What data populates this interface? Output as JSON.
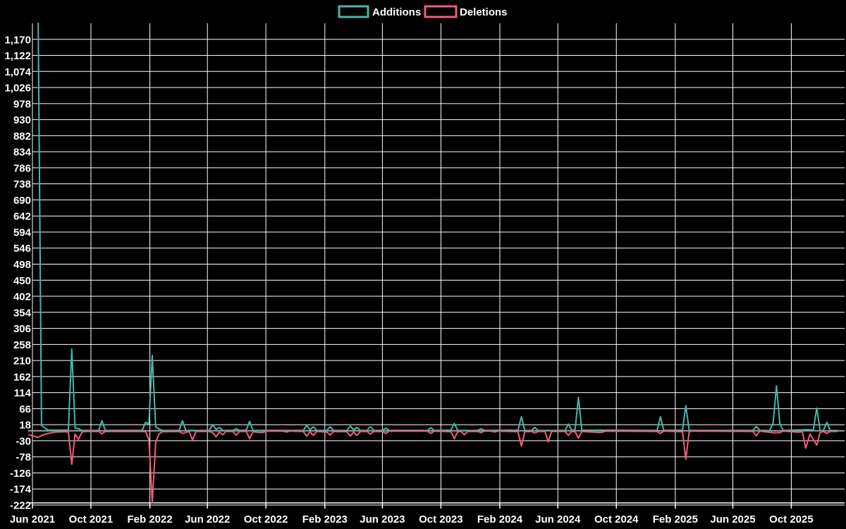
{
  "chart_data": {
    "type": "line",
    "title": "",
    "legend_position": "top-center",
    "background": "#000000",
    "grid": true,
    "grid_color": "#ffffff",
    "zero_line_color": "#9e9e9e",
    "axis_color": "#ffffff",
    "text_color": "#ffffff",
    "x_start_date": "2021-06-01",
    "ylim": [
      -222,
      1218
    ],
    "y_tick_step": 48,
    "y_ticks": [
      -222,
      -174,
      -126,
      -78,
      -30,
      18,
      66,
      114,
      162,
      210,
      258,
      306,
      354,
      402,
      450,
      498,
      546,
      594,
      642,
      690,
      738,
      786,
      834,
      882,
      930,
      978,
      1026,
      1074,
      1122,
      1170
    ],
    "x_ticks": [
      {
        "date": "2021-06-01",
        "label": "Jun 2021"
      },
      {
        "date": "2021-10-01",
        "label": "Oct 2021"
      },
      {
        "date": "2022-02-01",
        "label": "Feb 2022"
      },
      {
        "date": "2022-06-01",
        "label": "Jun 2022"
      },
      {
        "date": "2022-10-01",
        "label": "Oct 2022"
      },
      {
        "date": "2023-02-01",
        "label": "Feb 2023"
      },
      {
        "date": "2023-06-01",
        "label": "Jun 2023"
      },
      {
        "date": "2023-10-01",
        "label": "Oct 2023"
      },
      {
        "date": "2024-02-01",
        "label": "Feb 2024"
      },
      {
        "date": "2024-06-01",
        "label": "Jun 2024"
      },
      {
        "date": "2024-10-01",
        "label": "Oct 2024"
      },
      {
        "date": "2025-02-01",
        "label": "Feb 2025"
      },
      {
        "date": "2025-06-01",
        "label": "Jun 2025"
      },
      {
        "date": "2025-10-01",
        "label": "Oct 2025"
      }
    ],
    "series": [
      {
        "name": "Additions",
        "color": "#45b8ac",
        "points": [
          [
            "2021-06-13",
            1218
          ],
          [
            "2021-06-20",
            16
          ],
          [
            "2021-06-27",
            8
          ],
          [
            "2021-07-04",
            2
          ],
          [
            "2021-08-15",
            2
          ],
          [
            "2021-08-22",
            244
          ],
          [
            "2021-08-29",
            8
          ],
          [
            "2021-09-05",
            6
          ],
          [
            "2021-09-12",
            1
          ],
          [
            "2021-10-17",
            1
          ],
          [
            "2021-10-24",
            30
          ],
          [
            "2021-10-31",
            1
          ],
          [
            "2022-01-16",
            1
          ],
          [
            "2022-01-23",
            25
          ],
          [
            "2022-01-30",
            20
          ],
          [
            "2022-02-06",
            225
          ],
          [
            "2022-02-13",
            12
          ],
          [
            "2022-02-20",
            5
          ],
          [
            "2022-02-27",
            1
          ],
          [
            "2022-04-03",
            1
          ],
          [
            "2022-04-10",
            30
          ],
          [
            "2022-04-17",
            1
          ],
          [
            "2022-06-05",
            1
          ],
          [
            "2022-06-12",
            18
          ],
          [
            "2022-06-19",
            4
          ],
          [
            "2022-06-26",
            10
          ],
          [
            "2022-07-03",
            1
          ],
          [
            "2022-07-24",
            1
          ],
          [
            "2022-07-31",
            6
          ],
          [
            "2022-08-07",
            1
          ],
          [
            "2022-08-21",
            2
          ],
          [
            "2022-08-28",
            28
          ],
          [
            "2022-09-04",
            1
          ],
          [
            "2022-12-18",
            1
          ],
          [
            "2022-12-25",
            16
          ],
          [
            "2023-01-01",
            3
          ],
          [
            "2023-01-08",
            12
          ],
          [
            "2023-01-15",
            1
          ],
          [
            "2023-02-05",
            1
          ],
          [
            "2023-02-12",
            12
          ],
          [
            "2023-02-19",
            1
          ],
          [
            "2023-03-19",
            1
          ],
          [
            "2023-03-26",
            14
          ],
          [
            "2023-04-02",
            3
          ],
          [
            "2023-04-09",
            10
          ],
          [
            "2023-04-16",
            1
          ],
          [
            "2023-04-30",
            1
          ],
          [
            "2023-05-07",
            12
          ],
          [
            "2023-05-14",
            1
          ],
          [
            "2023-06-01",
            1
          ],
          [
            "2023-06-08",
            8
          ],
          [
            "2023-06-15",
            1
          ],
          [
            "2023-09-03",
            1
          ],
          [
            "2023-09-10",
            9
          ],
          [
            "2023-09-17",
            1
          ],
          [
            "2023-10-22",
            2
          ],
          [
            "2023-10-29",
            22
          ],
          [
            "2023-11-05",
            1
          ],
          [
            "2023-12-17",
            1
          ],
          [
            "2023-12-24",
            6
          ],
          [
            "2023-12-31",
            1
          ],
          [
            "2024-03-10",
            2
          ],
          [
            "2024-03-17",
            42
          ],
          [
            "2024-03-24",
            1
          ],
          [
            "2024-04-07",
            1
          ],
          [
            "2024-04-14",
            10
          ],
          [
            "2024-04-21",
            1
          ],
          [
            "2024-06-16",
            1
          ],
          [
            "2024-06-23",
            20
          ],
          [
            "2024-06-30",
            1
          ],
          [
            "2024-07-07",
            4
          ],
          [
            "2024-07-14",
            100
          ],
          [
            "2024-07-21",
            2
          ],
          [
            "2024-12-25",
            1
          ],
          [
            "2025-01-01",
            42
          ],
          [
            "2025-01-08",
            1
          ],
          [
            "2025-02-16",
            2
          ],
          [
            "2025-02-23",
            75
          ],
          [
            "2025-03-02",
            1
          ],
          [
            "2025-07-13",
            1
          ],
          [
            "2025-07-20",
            13
          ],
          [
            "2025-07-27",
            1
          ],
          [
            "2025-08-17",
            1
          ],
          [
            "2025-08-24",
            22
          ],
          [
            "2025-08-31",
            134
          ],
          [
            "2025-09-07",
            22
          ],
          [
            "2025-09-14",
            1
          ],
          [
            "2025-10-26",
            3
          ],
          [
            "2025-11-09",
            3
          ],
          [
            "2025-11-16",
            2
          ],
          [
            "2025-11-23",
            68
          ],
          [
            "2025-11-30",
            1
          ],
          [
            "2025-12-07",
            1
          ],
          [
            "2025-12-14",
            25
          ],
          [
            "2025-12-21",
            1
          ],
          [
            "2026-01-04",
            1
          ]
        ]
      },
      {
        "name": "Deletions",
        "color": "#f25d78",
        "points": [
          [
            "2021-05-25",
            -12
          ],
          [
            "2021-06-13",
            -20
          ],
          [
            "2021-06-20",
            -14
          ],
          [
            "2021-07-04",
            -8
          ],
          [
            "2021-07-18",
            -4
          ],
          [
            "2021-08-08",
            -3
          ],
          [
            "2021-08-15",
            -4
          ],
          [
            "2021-08-22",
            -100
          ],
          [
            "2021-08-29",
            -10
          ],
          [
            "2021-09-05",
            -26
          ],
          [
            "2021-09-12",
            -5
          ],
          [
            "2021-09-19",
            -2
          ],
          [
            "2021-10-17",
            -2
          ],
          [
            "2021-10-24",
            -9
          ],
          [
            "2021-10-31",
            -2
          ],
          [
            "2022-01-16",
            -2
          ],
          [
            "2022-01-23",
            -3
          ],
          [
            "2022-01-30",
            -25
          ],
          [
            "2022-02-06",
            -215
          ],
          [
            "2022-02-13",
            -35
          ],
          [
            "2022-02-20",
            -10
          ],
          [
            "2022-02-27",
            -3
          ],
          [
            "2022-04-03",
            -2
          ],
          [
            "2022-04-10",
            -8
          ],
          [
            "2022-04-24",
            -2
          ],
          [
            "2022-05-01",
            -28
          ],
          [
            "2022-05-08",
            -2
          ],
          [
            "2022-06-05",
            -2
          ],
          [
            "2022-06-12",
            -6
          ],
          [
            "2022-06-19",
            -18
          ],
          [
            "2022-06-26",
            -4
          ],
          [
            "2022-07-03",
            -12
          ],
          [
            "2022-07-10",
            -2
          ],
          [
            "2022-07-24",
            -2
          ],
          [
            "2022-07-31",
            -13
          ],
          [
            "2022-08-07",
            -2
          ],
          [
            "2022-08-21",
            -2
          ],
          [
            "2022-08-28",
            -24
          ],
          [
            "2022-09-04",
            -3
          ],
          [
            "2022-09-17",
            -5
          ],
          [
            "2022-09-25",
            -5
          ],
          [
            "2022-10-02",
            -1
          ],
          [
            "2022-11-06",
            -1
          ],
          [
            "2022-11-13",
            -4
          ],
          [
            "2022-11-20",
            -1
          ],
          [
            "2022-12-18",
            -2
          ],
          [
            "2022-12-25",
            -16
          ],
          [
            "2023-01-01",
            -3
          ],
          [
            "2023-01-08",
            -14
          ],
          [
            "2023-01-15",
            -2
          ],
          [
            "2023-02-05",
            -4
          ],
          [
            "2023-02-12",
            -13
          ],
          [
            "2023-02-19",
            -2
          ],
          [
            "2023-03-19",
            -3
          ],
          [
            "2023-03-26",
            -16
          ],
          [
            "2023-04-02",
            -4
          ],
          [
            "2023-04-09",
            -14
          ],
          [
            "2023-04-16",
            -2
          ],
          [
            "2023-04-30",
            -2
          ],
          [
            "2023-05-07",
            -10
          ],
          [
            "2023-05-14",
            -2
          ],
          [
            "2023-06-01",
            -2
          ],
          [
            "2023-06-08",
            -8
          ],
          [
            "2023-06-15",
            -1
          ],
          [
            "2023-09-03",
            -1
          ],
          [
            "2023-09-10",
            -8
          ],
          [
            "2023-09-17",
            -1
          ],
          [
            "2023-10-22",
            -3
          ],
          [
            "2023-10-29",
            -24
          ],
          [
            "2023-11-05",
            -3
          ],
          [
            "2023-11-12",
            -2
          ],
          [
            "2023-11-19",
            -12
          ],
          [
            "2023-11-26",
            -2
          ],
          [
            "2023-12-17",
            -2
          ],
          [
            "2023-12-24",
            -6
          ],
          [
            "2023-12-31",
            -1
          ],
          [
            "2024-01-14",
            -1
          ],
          [
            "2024-01-21",
            -4
          ],
          [
            "2024-01-28",
            -1
          ],
          [
            "2024-03-10",
            -3
          ],
          [
            "2024-03-17",
            -46
          ],
          [
            "2024-03-24",
            -3
          ],
          [
            "2024-04-07",
            -2
          ],
          [
            "2024-04-14",
            -7
          ],
          [
            "2024-04-21",
            -2
          ],
          [
            "2024-05-05",
            -2
          ],
          [
            "2024-05-12",
            -33
          ],
          [
            "2024-05-19",
            -2
          ],
          [
            "2024-06-16",
            -2
          ],
          [
            "2024-06-23",
            -14
          ],
          [
            "2024-06-30",
            -2
          ],
          [
            "2024-07-07",
            -3
          ],
          [
            "2024-07-14",
            -22
          ],
          [
            "2024-07-21",
            -2
          ],
          [
            "2024-08-25",
            -5
          ],
          [
            "2024-09-01",
            -5
          ],
          [
            "2024-09-08",
            -1
          ],
          [
            "2024-12-25",
            -2
          ],
          [
            "2025-01-01",
            -8
          ],
          [
            "2025-01-08",
            -1
          ],
          [
            "2025-02-16",
            -3
          ],
          [
            "2025-02-23",
            -85
          ],
          [
            "2025-03-02",
            -3
          ],
          [
            "2025-03-09",
            -1
          ],
          [
            "2025-07-13",
            -2
          ],
          [
            "2025-07-20",
            -15
          ],
          [
            "2025-07-27",
            -1
          ],
          [
            "2025-08-24",
            -6
          ],
          [
            "2025-09-07",
            -6
          ],
          [
            "2025-09-14",
            -1
          ],
          [
            "2025-10-12",
            -4
          ],
          [
            "2025-10-19",
            -4
          ],
          [
            "2025-10-24",
            -2
          ],
          [
            "2025-10-31",
            -52
          ],
          [
            "2025-11-09",
            -10
          ],
          [
            "2025-11-23",
            -43
          ],
          [
            "2025-11-30",
            -6
          ],
          [
            "2025-12-07",
            -2
          ],
          [
            "2025-12-14",
            -8
          ],
          [
            "2025-12-21",
            -2
          ],
          [
            "2026-01-04",
            -2
          ]
        ]
      }
    ]
  }
}
